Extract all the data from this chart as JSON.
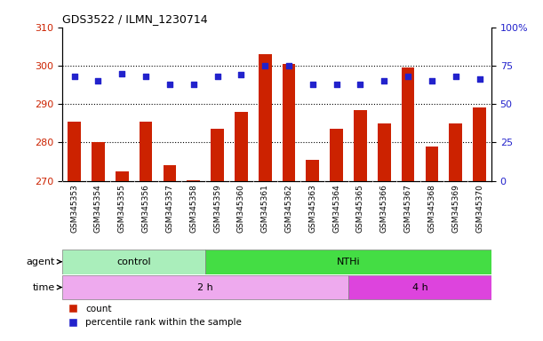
{
  "title": "GDS3522 / ILMN_1230714",
  "samples": [
    "GSM345353",
    "GSM345354",
    "GSM345355",
    "GSM345356",
    "GSM345357",
    "GSM345358",
    "GSM345359",
    "GSM345360",
    "GSM345361",
    "GSM345362",
    "GSM345363",
    "GSM345364",
    "GSM345365",
    "GSM345366",
    "GSM345367",
    "GSM345368",
    "GSM345369",
    "GSM345370"
  ],
  "count_values": [
    285.5,
    280.0,
    272.5,
    285.5,
    274.0,
    270.2,
    283.5,
    288.0,
    303.0,
    300.5,
    275.5,
    283.5,
    288.5,
    285.0,
    299.5,
    279.0,
    285.0,
    289.0
  ],
  "percentile_values": [
    68,
    65,
    70,
    68,
    63,
    63,
    68,
    69,
    75,
    75,
    63,
    63,
    63,
    65,
    68,
    65,
    68,
    66
  ],
  "ylim_left": [
    270,
    310
  ],
  "ylim_right": [
    0,
    100
  ],
  "yticks_left": [
    270,
    280,
    290,
    300,
    310
  ],
  "yticks_right": [
    0,
    25,
    50,
    75,
    100
  ],
  "bar_color": "#cc2200",
  "dot_color": "#2222cc",
  "bar_bottom": 270,
  "agent_groups": [
    {
      "label": "control",
      "start": 0,
      "end": 6,
      "color": "#aaeebb"
    },
    {
      "label": "NTHi",
      "start": 6,
      "end": 18,
      "color": "#44dd44"
    }
  ],
  "time_groups": [
    {
      "label": "2 h",
      "start": 0,
      "end": 12,
      "color": "#eeaaee"
    },
    {
      "label": "4 h",
      "start": 12,
      "end": 18,
      "color": "#dd44dd"
    }
  ],
  "legend_count_label": "count",
  "legend_pct_label": "percentile rank within the sample",
  "agent_label": "agent",
  "time_label": "time",
  "grid_yticks": [
    280,
    290,
    300
  ],
  "tick_label_color_left": "#cc2200",
  "tick_label_color_right": "#2222cc",
  "bar_width": 0.55,
  "dot_size": 20,
  "xtick_bg": "#dddddd"
}
